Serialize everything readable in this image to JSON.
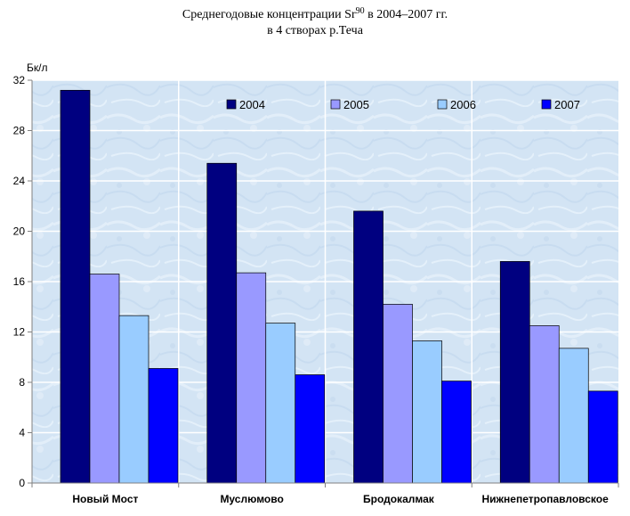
{
  "title": {
    "line1_prefix": "Среднегодовые концентрации Sr",
    "line1_superscript": "90",
    "line1_suffix": " в 2004–2007 гг.",
    "line2": "в 4 створах р.Теча"
  },
  "chart_data": {
    "type": "bar",
    "ylabel": "Бк/л",
    "xlabel": "",
    "ylim": [
      0,
      32
    ],
    "yticks": [
      0,
      4,
      8,
      12,
      16,
      20,
      24,
      28,
      32
    ],
    "grid": true,
    "legend_position": "top-right",
    "categories": [
      "Новый Мост",
      "Муслюмово",
      "Бродокалмак",
      "Нижнепетропавловское"
    ],
    "series": [
      {
        "name": "2004",
        "color": "#000080",
        "values": [
          31.2,
          25.4,
          21.6,
          17.6
        ]
      },
      {
        "name": "2005",
        "color": "#9999ff",
        "values": [
          16.6,
          16.7,
          14.2,
          12.5
        ]
      },
      {
        "name": "2006",
        "color": "#99ccff",
        "values": [
          13.3,
          12.7,
          11.3,
          10.7
        ]
      },
      {
        "name": "2007",
        "color": "#0000ff",
        "values": [
          9.1,
          8.6,
          8.1,
          7.3
        ]
      }
    ],
    "plot_background": "#d6e6f5"
  }
}
